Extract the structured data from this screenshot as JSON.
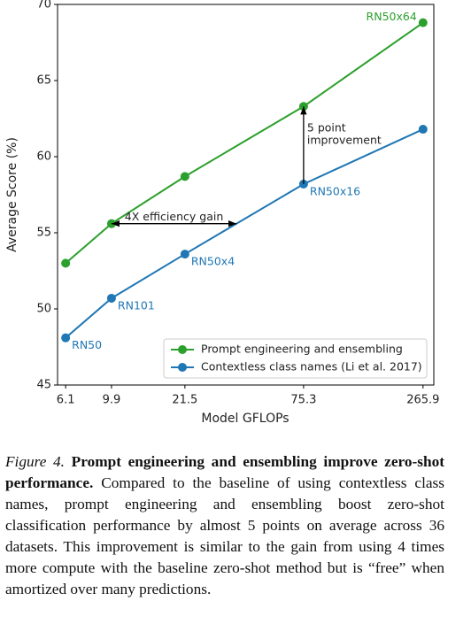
{
  "chart_data": {
    "type": "line",
    "x": [
      6.1,
      9.9,
      21.5,
      75.3,
      265.9
    ],
    "xscale": "log",
    "xlim": [
      5.6,
      298
    ],
    "xticks": [
      6.1,
      9.9,
      21.5,
      75.3,
      265.9
    ],
    "ylim": [
      45,
      70
    ],
    "yticks": [
      45,
      50,
      55,
      60,
      65,
      70
    ],
    "xlabel": "Model GFLOPs",
    "ylabel": "Average Score (%)",
    "grid": false,
    "legend": "lower right",
    "series": [
      {
        "name": "Prompt engineering and ensembling",
        "color": "#2ca02c",
        "values": [
          53.0,
          55.6,
          58.7,
          63.3,
          68.8
        ],
        "labels": [
          null,
          null,
          null,
          null,
          "RN50x64"
        ]
      },
      {
        "name": "Contextless class names (Li et al. 2017)",
        "color": "#1f77b4",
        "values": [
          48.1,
          50.7,
          53.6,
          58.2,
          61.8
        ],
        "labels": [
          "RN50",
          "RN101",
          "RN50x4",
          "RN50x16",
          null
        ]
      }
    ],
    "annotations": [
      {
        "text": [
          "4X efficiency gain"
        ]
      },
      {
        "text": [
          "5 point",
          "improvement"
        ]
      }
    ]
  },
  "caption": {
    "label": "Figure 4.",
    "title": "Prompt engineering and ensembling improve zero-shot performance.",
    "text": "Compared to the baseline of using contextless class names, prompt engineering and ensembling boost zero-shot classification performance by almost 5 points on average across 36 datasets. This improvement is similar to the gain from using 4 times more compute with the baseline zero-shot method but is “free” when amortized over many predictions."
  }
}
